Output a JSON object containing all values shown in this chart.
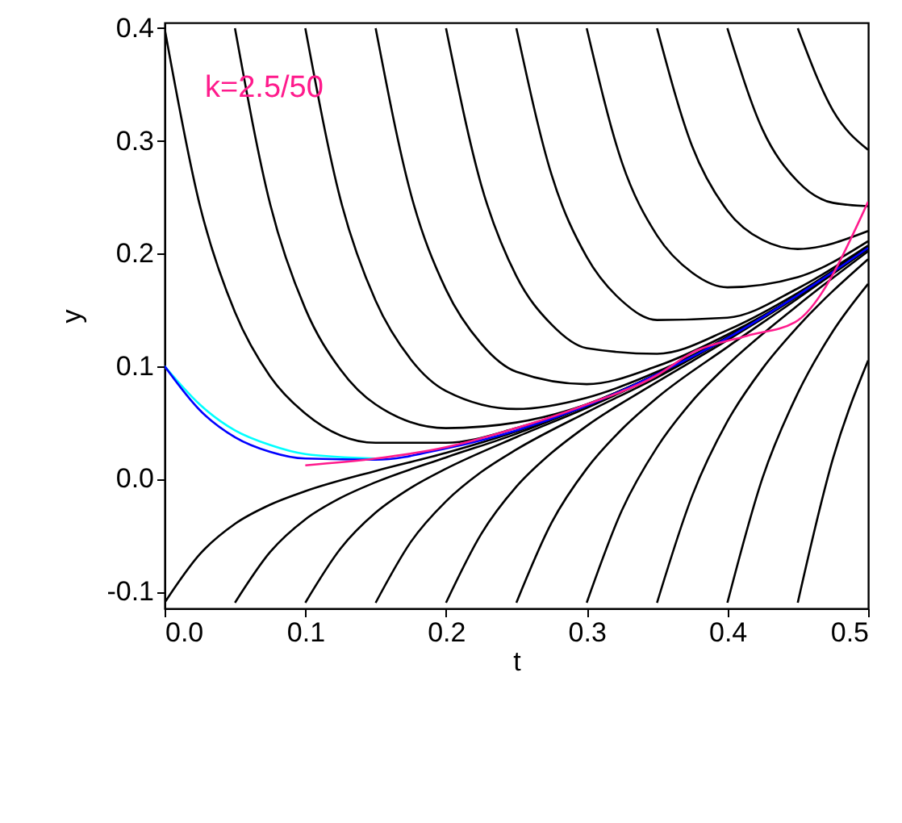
{
  "chart_data": {
    "type": "line",
    "xlabel": "t",
    "ylabel": "y",
    "annotations": [
      "k=2.5/50"
    ],
    "xlim": [
      0,
      0.5
    ],
    "ylim": [
      -0.115,
      0.405
    ],
    "xticks": [
      {
        "value": 0,
        "label": "0.0"
      },
      {
        "value": 0.1,
        "label": "0.1"
      },
      {
        "value": 0.2,
        "label": "0.2"
      },
      {
        "value": 0.3,
        "label": "0.3"
      },
      {
        "value": 0.4,
        "label": "0.4"
      },
      {
        "value": 0.5,
        "label": "0.5"
      }
    ],
    "yticks": [
      {
        "value": -0.1,
        "label": "-0.1"
      },
      {
        "value": 0,
        "label": "0.0"
      },
      {
        "value": 0.1,
        "label": "0.1"
      },
      {
        "value": 0.2,
        "label": "0.2"
      },
      {
        "value": 0.3,
        "label": "0.3"
      },
      {
        "value": 0.4,
        "label": "0.4"
      }
    ],
    "grid": false,
    "legend": false,
    "marker": "none",
    "line_style": "solid",
    "series": [
      {
        "color": "#000000",
        "x": [
          0,
          0.025,
          0.05,
          0.075,
          0.1,
          0.15,
          0.2,
          0.25,
          0.3,
          0.35,
          0.4,
          0.45,
          0.5
        ],
        "values": [
          0.4,
          0.243,
          0.148,
          0.091,
          0.058,
          0.032,
          0.032,
          0.045,
          0.066,
          0.093,
          0.125,
          0.163,
          0.205
        ]
      },
      {
        "color": "#000000",
        "x": [
          0.05,
          0.075,
          0.1,
          0.125,
          0.15,
          0.2,
          0.25,
          0.3,
          0.35,
          0.4,
          0.45,
          0.5
        ],
        "values": [
          0.4,
          0.244,
          0.151,
          0.097,
          0.066,
          0.045,
          0.05,
          0.066,
          0.093,
          0.125,
          0.163,
          0.205
        ]
      },
      {
        "color": "#000000",
        "x": [
          0.1,
          0.125,
          0.15,
          0.175,
          0.2,
          0.25,
          0.3,
          0.35,
          0.4,
          0.45,
          0.5
        ],
        "values": [
          0.4,
          0.248,
          0.158,
          0.106,
          0.078,
          0.062,
          0.072,
          0.095,
          0.126,
          0.163,
          0.205
        ]
      },
      {
        "color": "#000000",
        "x": [
          0.15,
          0.175,
          0.2,
          0.225,
          0.25,
          0.3,
          0.35,
          0.4,
          0.45,
          0.5
        ],
        "values": [
          0.4,
          0.253,
          0.168,
          0.12,
          0.095,
          0.084,
          0.1,
          0.128,
          0.163,
          0.205
        ]
      },
      {
        "color": "#000000",
        "x": [
          0.2,
          0.225,
          0.25,
          0.275,
          0.3,
          0.35,
          0.4,
          0.45,
          0.5
        ],
        "values": [
          0.4,
          0.261,
          0.18,
          0.137,
          0.116,
          0.111,
          0.132,
          0.165,
          0.206
        ]
      },
      {
        "color": "#000000",
        "x": [
          0.25,
          0.275,
          0.3,
          0.325,
          0.35,
          0.4,
          0.45,
          0.5
        ],
        "values": [
          0.4,
          0.27,
          0.197,
          0.158,
          0.141,
          0.143,
          0.169,
          0.207
        ]
      },
      {
        "color": "#000000",
        "x": [
          0.3,
          0.325,
          0.35,
          0.375,
          0.4,
          0.45,
          0.5
        ],
        "values": [
          0.4,
          0.281,
          0.216,
          0.183,
          0.17,
          0.179,
          0.211
        ]
      },
      {
        "color": "#000000",
        "x": [
          0.35,
          0.375,
          0.4,
          0.425,
          0.45,
          0.5
        ],
        "values": [
          0.4,
          0.295,
          0.238,
          0.212,
          0.204,
          0.22
        ]
      },
      {
        "color": "#000000",
        "x": [
          0.4,
          0.425,
          0.45,
          0.475,
          0.5
        ],
        "values": [
          0.4,
          0.31,
          0.264,
          0.245,
          0.242
        ]
      },
      {
        "color": "#000000",
        "x": [
          0.45,
          0.475,
          0.5
        ],
        "values": [
          0.4,
          0.327,
          0.292
        ]
      },
      {
        "color": "#000000",
        "x": [
          0,
          0.025,
          0.05,
          0.075,
          0.1,
          0.15,
          0.2,
          0.25,
          0.3,
          0.35,
          0.4,
          0.45,
          0.5
        ],
        "values": [
          -0.11,
          -0.067,
          -0.04,
          -0.023,
          -0.011,
          0.007,
          0.023,
          0.042,
          0.065,
          0.093,
          0.125,
          0.163,
          0.205
        ]
      },
      {
        "color": "#000000",
        "x": [
          0.05,
          0.075,
          0.1,
          0.125,
          0.15,
          0.2,
          0.25,
          0.3,
          0.35,
          0.4,
          0.45,
          0.5
        ],
        "values": [
          -0.11,
          -0.065,
          -0.036,
          -0.017,
          -0.003,
          0.019,
          0.04,
          0.065,
          0.093,
          0.125,
          0.163,
          0.205
        ]
      },
      {
        "color": "#000000",
        "x": [
          0.1,
          0.125,
          0.15,
          0.175,
          0.2,
          0.25,
          0.3,
          0.35,
          0.4,
          0.45,
          0.5
        ],
        "values": [
          -0.11,
          -0.062,
          -0.03,
          -0.008,
          0.009,
          0.037,
          0.063,
          0.092,
          0.125,
          0.163,
          0.205
        ]
      },
      {
        "color": "#000000",
        "x": [
          0.15,
          0.175,
          0.2,
          0.225,
          0.25,
          0.3,
          0.35,
          0.4,
          0.45,
          0.5
        ],
        "values": [
          -0.11,
          -0.056,
          -0.02,
          0.006,
          0.026,
          0.059,
          0.09,
          0.125,
          0.163,
          0.205
        ]
      },
      {
        "color": "#000000",
        "x": [
          0.2,
          0.225,
          0.25,
          0.275,
          0.3,
          0.35,
          0.4,
          0.45,
          0.5
        ],
        "values": [
          -0.11,
          -0.049,
          -0.007,
          0.023,
          0.047,
          0.086,
          0.123,
          0.162,
          0.205
        ]
      },
      {
        "color": "#000000",
        "x": [
          0.25,
          0.275,
          0.3,
          0.325,
          0.35,
          0.4,
          0.45,
          0.5
        ],
        "values": [
          -0.11,
          -0.039,
          0.009,
          0.044,
          0.072,
          0.117,
          0.16,
          0.204
        ]
      },
      {
        "color": "#000000",
        "x": [
          0.3,
          0.325,
          0.35,
          0.375,
          0.4,
          0.45,
          0.5
        ],
        "values": [
          -0.11,
          -0.028,
          0.028,
          0.069,
          0.101,
          0.154,
          0.202
        ]
      },
      {
        "color": "#000000",
        "x": [
          0.35,
          0.375,
          0.4,
          0.425,
          0.45,
          0.5
        ],
        "values": [
          -0.11,
          -0.015,
          0.051,
          0.098,
          0.135,
          0.195
        ]
      },
      {
        "color": "#000000",
        "x": [
          0.4,
          0.425,
          0.45,
          0.475,
          0.5
        ],
        "values": [
          -0.11,
          0.001,
          0.076,
          0.131,
          0.173
        ]
      },
      {
        "color": "#000000",
        "x": [
          0.45,
          0.475,
          0.5
        ],
        "values": [
          -0.11,
          0.018,
          0.105
        ]
      },
      {
        "color": "#00ffff",
        "x": [
          0,
          0.025,
          0.05,
          0.075,
          0.1,
          0.15
        ],
        "values": [
          0.1,
          0.066,
          0.043,
          0.03,
          0.022,
          0.018
        ]
      },
      {
        "color": "#0000ff",
        "x": [
          0,
          0.025,
          0.05,
          0.075,
          0.1,
          0.15,
          0.2,
          0.25,
          0.3,
          0.35,
          0.4,
          0.45,
          0.5
        ],
        "values": [
          0.1,
          0.061,
          0.037,
          0.024,
          0.018,
          0.017,
          0.027,
          0.043,
          0.065,
          0.093,
          0.125,
          0.163,
          0.205
        ]
      },
      {
        "color": "#ff1a8c",
        "x": [
          0.1,
          0.15,
          0.2,
          0.25,
          0.3,
          0.35,
          0.375,
          0.414,
          0.448,
          0.5
        ],
        "values": [
          0.012,
          0.018,
          0.028,
          0.045,
          0.066,
          0.092,
          0.112,
          0.127,
          0.139,
          0.246
        ]
      }
    ]
  }
}
